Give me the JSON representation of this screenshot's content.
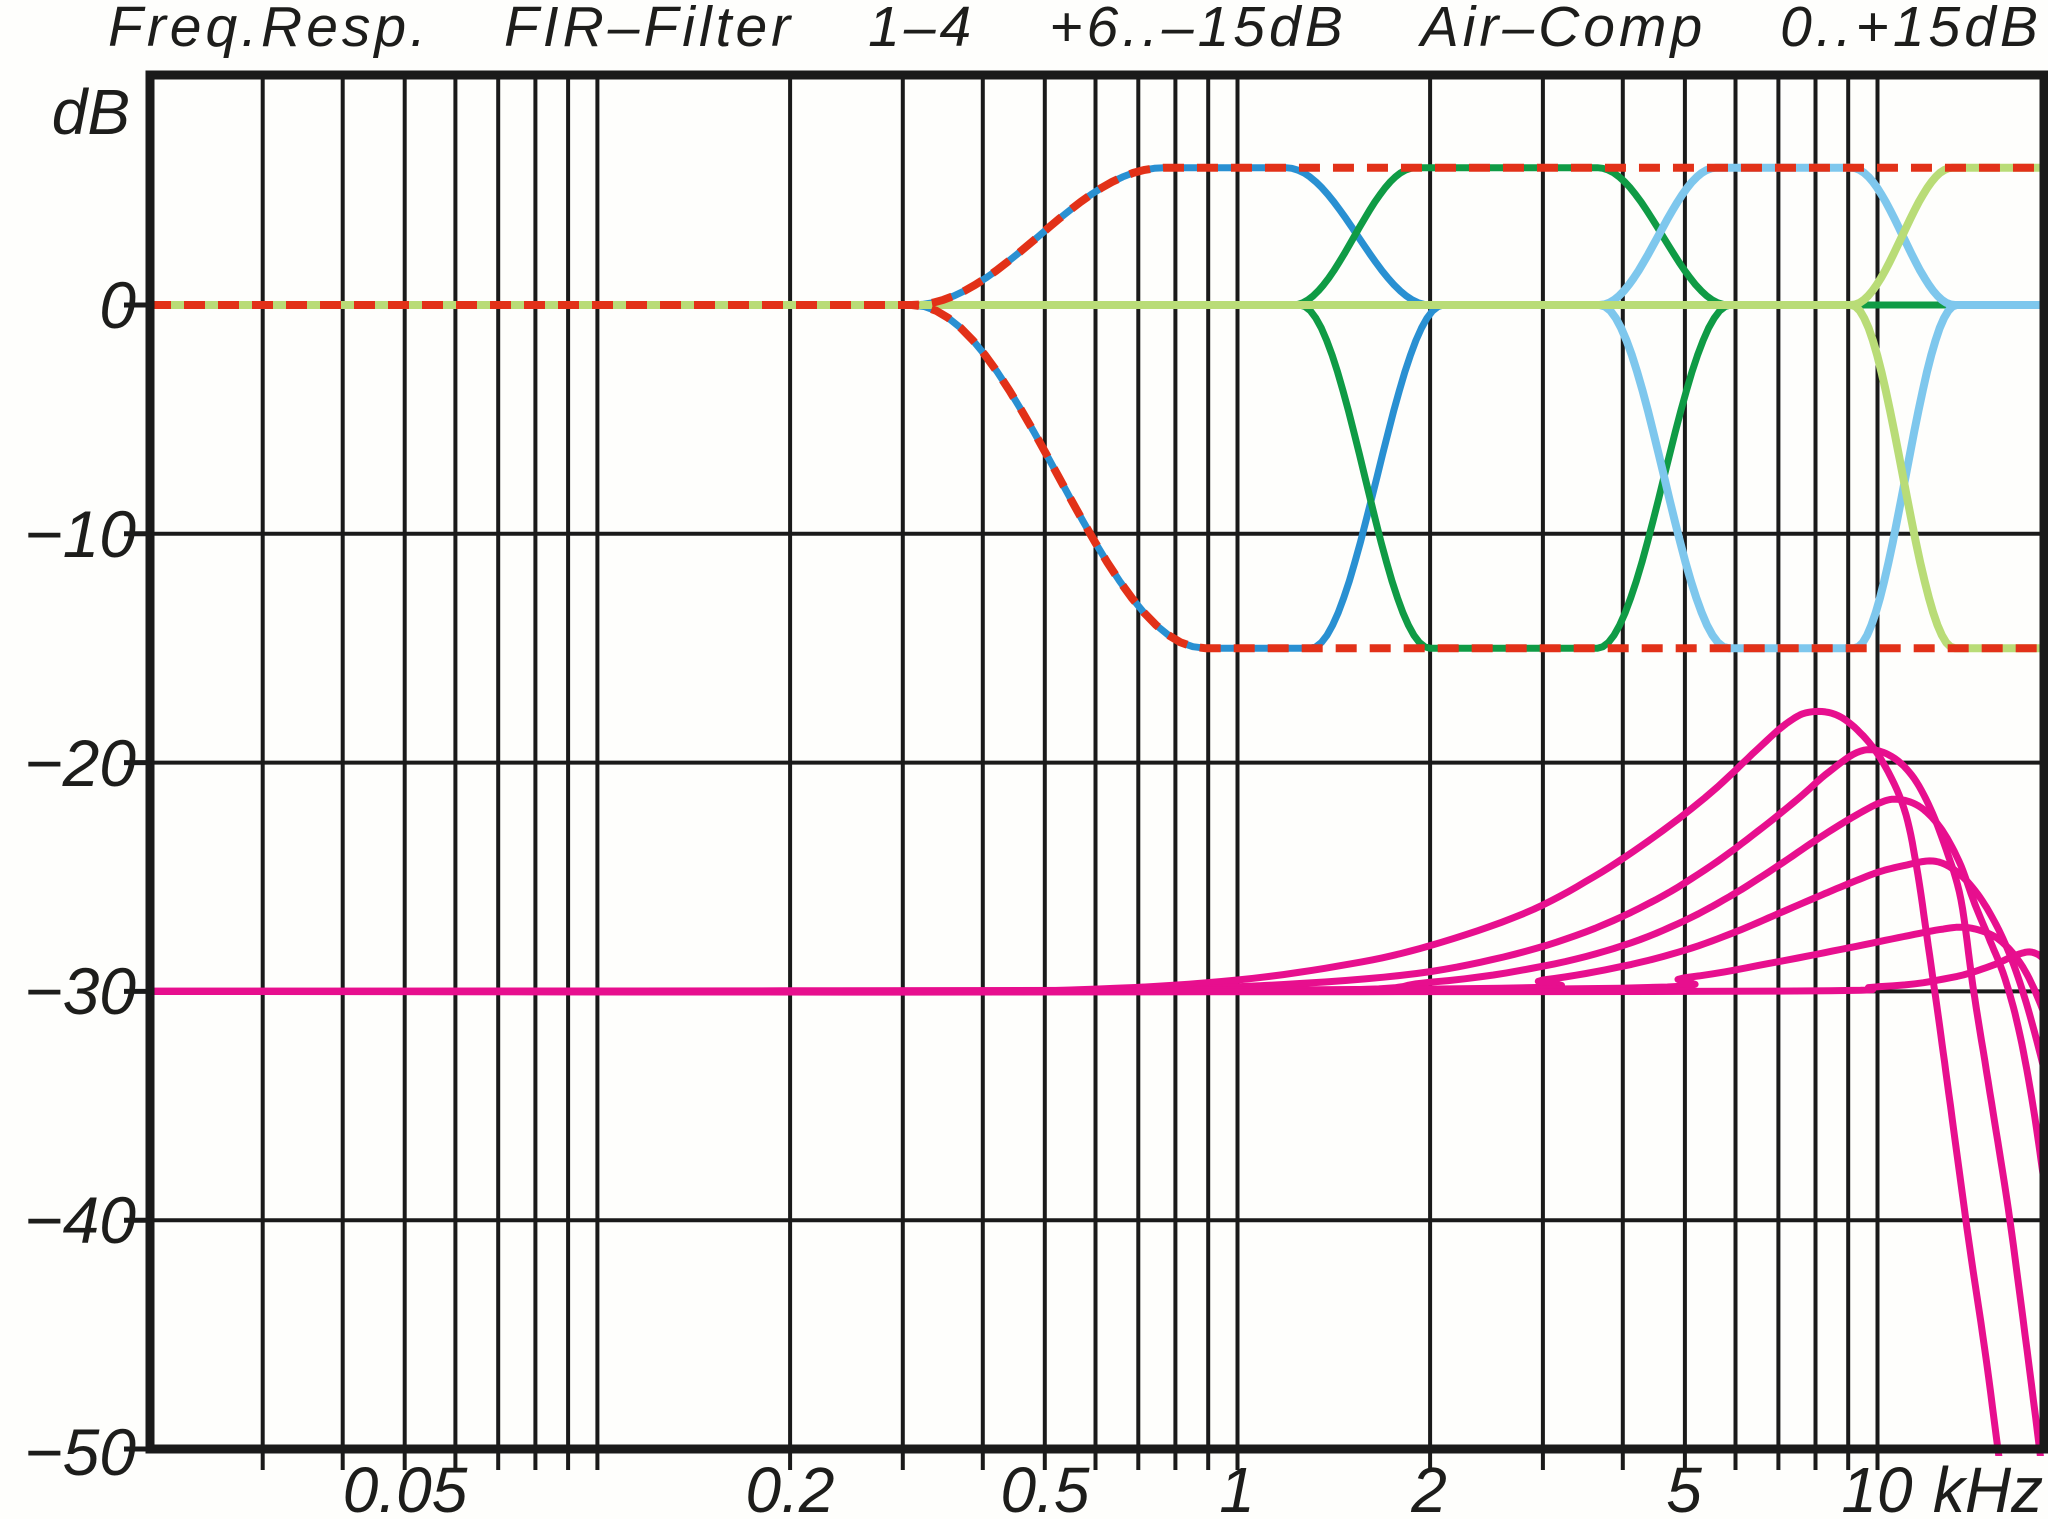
{
  "title": "Freq.Resp. FIR–Filter 1–4 +6..–15dB Air–Comp 0..+15dB",
  "title_words": [
    "Freq.Resp.",
    "FIR–Filter",
    "1–4",
    "+6..–15dB",
    "Air–Comp",
    "0..+15dB"
  ],
  "axes": {
    "y_unit_label": "dB",
    "y_tick_labels": [
      "0",
      "−10",
      "−20",
      "−30",
      "−40",
      "−50"
    ],
    "x_tick_labels": [
      "0.05",
      "0.2",
      "0.5",
      "1",
      "2",
      "5",
      "10"
    ],
    "x_unit_label": "kHz"
  },
  "colors": {
    "ink": "#1d1d1b",
    "grid": "#1a1a1a",
    "envelope_red": "#e23118",
    "filter1_blue": "#2990d2",
    "filter2_green": "#0f9b45",
    "filter3_lightblue": "#7ec7ed",
    "filter4_lightgreen": "#b9dc77",
    "aircomp_magenta": "#e70f8e"
  },
  "chart_data": {
    "type": "line",
    "x_scale": "log",
    "x_axis_label": "kHz",
    "y_axis_label": "dB",
    "x_range_khz": [
      0.02,
      18.2
    ],
    "y_range_db": [
      -50,
      10
    ],
    "y_gridlines_db": [
      0,
      -10,
      -20,
      -30,
      -40
    ],
    "x_gridlines_khz": [
      0.03,
      0.04,
      0.05,
      0.06,
      0.07,
      0.08,
      0.09,
      0.1,
      0.2,
      0.3,
      0.4,
      0.5,
      0.6,
      0.7,
      0.8,
      0.9,
      1,
      2,
      3,
      4,
      5,
      6,
      7,
      8,
      9,
      10
    ],
    "x_tick_khz": [
      0.05,
      0.2,
      0.5,
      1,
      2,
      5,
      10
    ],
    "y_tick_db": [
      0,
      -10,
      -20,
      -30,
      -40,
      -50
    ],
    "legend": "none",
    "grid": "on",
    "description": "FIR shelving filters 1-4 shown at max (+6 dB) and min (-15 dB) settings with red dashed overall envelope; magenta Air-Comp boost curves 0..+15 dB offset to -30 dB",
    "series": [
      {
        "name": "fir-filter-1-max",
        "color_key": "filter1_blue",
        "width": 7,
        "segments": [
          {
            "type": "flat",
            "f0": 0.02,
            "f1": 0.31,
            "db": 0
          },
          {
            "type": "s",
            "f0": 0.31,
            "f1": 0.77,
            "db0": 0,
            "db1": 6
          },
          {
            "type": "flat",
            "f0": 0.77,
            "f1": 1.19,
            "db": 6
          },
          {
            "type": "s",
            "f0": 1.19,
            "f1": 2.0,
            "db0": 6,
            "db1": 0
          },
          {
            "type": "flat",
            "f0": 2.0,
            "f1": 18.2,
            "db": 0
          }
        ]
      },
      {
        "name": "fir-filter-1-min",
        "color_key": "filter1_blue",
        "width": 7,
        "segments": [
          {
            "type": "flat",
            "f0": 0.02,
            "f1": 0.31,
            "db": 0
          },
          {
            "type": "s",
            "f0": 0.31,
            "f1": 0.89,
            "db0": 0,
            "db1": -15
          },
          {
            "type": "flat",
            "f0": 0.89,
            "f1": 1.3,
            "db": -15
          },
          {
            "type": "s",
            "f0": 1.3,
            "f1": 2.1,
            "db0": -15,
            "db1": 0
          },
          {
            "type": "flat",
            "f0": 2.1,
            "f1": 18.2,
            "db": 0
          }
        ]
      },
      {
        "name": "fir-filter-2-max",
        "color_key": "filter2_green",
        "width": 7,
        "segments": [
          {
            "type": "flat",
            "f0": 0.02,
            "f1": 1.22,
            "db": 0
          },
          {
            "type": "s",
            "f0": 1.22,
            "f1": 1.9,
            "db0": 0,
            "db1": 6
          },
          {
            "type": "flat",
            "f0": 1.9,
            "f1": 3.65,
            "db": 6
          },
          {
            "type": "s",
            "f0": 3.65,
            "f1": 5.85,
            "db0": 6,
            "db1": 0
          },
          {
            "type": "flat",
            "f0": 5.85,
            "f1": 18.2,
            "db": 0
          }
        ]
      },
      {
        "name": "fir-filter-2-min",
        "color_key": "filter2_green",
        "width": 7,
        "segments": [
          {
            "type": "flat",
            "f0": 0.02,
            "f1": 1.25,
            "db": 0
          },
          {
            "type": "s",
            "f0": 1.25,
            "f1": 2.0,
            "db0": 0,
            "db1": -15
          },
          {
            "type": "flat",
            "f0": 2.0,
            "f1": 3.65,
            "db": -15
          },
          {
            "type": "s",
            "f0": 3.65,
            "f1": 5.9,
            "db0": -15,
            "db1": 0
          },
          {
            "type": "flat",
            "f0": 5.9,
            "f1": 18.2,
            "db": 0
          }
        ]
      },
      {
        "name": "fir-filter-3-max",
        "color_key": "filter3_lightblue",
        "width": 8,
        "segments": [
          {
            "type": "flat",
            "f0": 0.02,
            "f1": 3.68,
            "db": 0
          },
          {
            "type": "s",
            "f0": 3.68,
            "f1": 5.6,
            "db0": 0,
            "db1": 6
          },
          {
            "type": "flat",
            "f0": 5.6,
            "f1": 9.1,
            "db": 6
          },
          {
            "type": "s",
            "f0": 9.1,
            "f1": 13.2,
            "db0": 6,
            "db1": 0
          },
          {
            "type": "flat",
            "f0": 13.2,
            "f1": 18.2,
            "db": 0
          }
        ]
      },
      {
        "name": "fir-filter-3-min",
        "color_key": "filter3_lightblue",
        "width": 8,
        "segments": [
          {
            "type": "flat",
            "f0": 0.02,
            "f1": 3.68,
            "db": 0
          },
          {
            "type": "s",
            "f0": 3.68,
            "f1": 5.85,
            "db0": 0,
            "db1": -15
          },
          {
            "type": "flat",
            "f0": 5.85,
            "f1": 9.2,
            "db": -15
          },
          {
            "type": "s",
            "f0": 9.2,
            "f1": 13.3,
            "db0": -15,
            "db1": 0
          },
          {
            "type": "flat",
            "f0": 13.3,
            "f1": 18.2,
            "db": 0
          }
        ]
      },
      {
        "name": "fir-filter-4-max",
        "color_key": "filter4_lightgreen",
        "width": 8,
        "segments": [
          {
            "type": "flat",
            "f0": 0.02,
            "f1": 9.1,
            "db": 0
          },
          {
            "type": "s",
            "f0": 9.1,
            "f1": 13.1,
            "db0": 0,
            "db1": 6
          },
          {
            "type": "flat",
            "f0": 13.1,
            "f1": 18.2,
            "db": 6
          }
        ]
      },
      {
        "name": "fir-filter-4-min",
        "color_key": "filter4_lightgreen",
        "width": 8,
        "segments": [
          {
            "type": "flat",
            "f0": 0.02,
            "f1": 9.1,
            "db": 0
          },
          {
            "type": "s",
            "f0": 9.1,
            "f1": 13.2,
            "db0": 0,
            "db1": -15
          },
          {
            "type": "flat",
            "f0": 13.2,
            "f1": 18.2,
            "db": -15
          }
        ]
      },
      {
        "name": "air-comp-plus15",
        "color_key": "aircomp_magenta",
        "width": 7,
        "points": [
          [
            0.02,
            -30
          ],
          [
            0.3,
            -30
          ],
          [
            0.6,
            -29.9
          ],
          [
            1,
            -29.5
          ],
          [
            1.5,
            -28.8
          ],
          [
            2,
            -28
          ],
          [
            2.8,
            -26.6
          ],
          [
            3.6,
            -25
          ],
          [
            4.5,
            -23.2
          ],
          [
            5.5,
            -21.3
          ],
          [
            6.5,
            -19.4
          ],
          [
            7.2,
            -18.3
          ],
          [
            7.8,
            -17.8
          ],
          [
            8.6,
            -17.9
          ],
          [
            9.4,
            -18.7
          ],
          [
            10.2,
            -20
          ],
          [
            11,
            -22
          ],
          [
            11.5,
            -24.5
          ],
          [
            12,
            -28
          ],
          [
            12.5,
            -31.5
          ],
          [
            13,
            -35
          ],
          [
            13.9,
            -41
          ],
          [
            14.7,
            -45.6
          ],
          [
            15.5,
            -50.5
          ],
          [
            15.9,
            -53
          ]
        ]
      },
      {
        "name": "air-comp-plus12",
        "color_key": "aircomp_magenta",
        "width": 7,
        "points": [
          [
            0.02,
            -30
          ],
          [
            0.5,
            -30
          ],
          [
            1,
            -29.8
          ],
          [
            1.8,
            -29.3
          ],
          [
            2.6,
            -28.5
          ],
          [
            3.5,
            -27.4
          ],
          [
            4.5,
            -26
          ],
          [
            5.5,
            -24.5
          ],
          [
            6.5,
            -23
          ],
          [
            7.5,
            -21.6
          ],
          [
            8.4,
            -20.4
          ],
          [
            9.4,
            -19.5
          ],
          [
            10.3,
            -19.6
          ],
          [
            11.2,
            -20.4
          ],
          [
            12,
            -21.8
          ],
          [
            12.8,
            -23.8
          ],
          [
            13.5,
            -26
          ],
          [
            14.1,
            -29.8
          ],
          [
            14.8,
            -33.5
          ],
          [
            15.5,
            -37
          ],
          [
            16.1,
            -40
          ],
          [
            17,
            -45
          ],
          [
            18,
            -50.5
          ],
          [
            18.4,
            -53
          ]
        ]
      },
      {
        "name": "air-comp-plus9",
        "color_key": "aircomp_magenta",
        "width": 7,
        "points": [
          [
            0.02,
            -30
          ],
          [
            1,
            -30
          ],
          [
            2,
            -29.6
          ],
          [
            3,
            -28.9
          ],
          [
            4,
            -28
          ],
          [
            5,
            -26.9
          ],
          [
            6,
            -25.7
          ],
          [
            7,
            -24.5
          ],
          [
            8,
            -23.4
          ],
          [
            9,
            -22.5
          ],
          [
            10,
            -21.8
          ],
          [
            10.7,
            -21.6
          ],
          [
            11.6,
            -21.9
          ],
          [
            12.5,
            -22.8
          ],
          [
            13.4,
            -24.3
          ],
          [
            14.2,
            -26.2
          ],
          [
            15,
            -27.8
          ],
          [
            15.8,
            -29.4
          ],
          [
            16.6,
            -31.6
          ],
          [
            17.4,
            -34.6
          ],
          [
            18.2,
            -38.3
          ],
          [
            18.8,
            -41.5
          ]
        ]
      },
      {
        "name": "air-comp-plus6",
        "color_key": "aircomp_magenta",
        "width": 7,
        "points": [
          [
            0.02,
            -30
          ],
          [
            2,
            -29.9
          ],
          [
            3,
            -29.5
          ],
          [
            4,
            -28.9
          ],
          [
            5,
            -28.2
          ],
          [
            6,
            -27.4
          ],
          [
            7,
            -26.6
          ],
          [
            8,
            -25.9
          ],
          [
            9,
            -25.3
          ],
          [
            10,
            -24.8
          ],
          [
            11,
            -24.5
          ],
          [
            12.2,
            -24.3
          ],
          [
            13.2,
            -24.7
          ],
          [
            14.2,
            -25.6
          ],
          [
            15.2,
            -26.9
          ],
          [
            16.2,
            -28.6
          ],
          [
            17.2,
            -30.8
          ],
          [
            18.2,
            -33.4
          ],
          [
            18.8,
            -35.2
          ]
        ]
      },
      {
        "name": "air-comp-plus3",
        "color_key": "aircomp_magenta",
        "width": 7,
        "points": [
          [
            0.02,
            -30
          ],
          [
            3,
            -29.9
          ],
          [
            5,
            -29.4
          ],
          [
            7,
            -28.7
          ],
          [
            9,
            -28.1
          ],
          [
            11,
            -27.6
          ],
          [
            12.5,
            -27.3
          ],
          [
            13.7,
            -27.2
          ],
          [
            15,
            -27.5
          ],
          [
            16,
            -28.1
          ],
          [
            17,
            -29.1
          ],
          [
            18,
            -30.6
          ],
          [
            18.8,
            -32.2
          ]
        ]
      },
      {
        "name": "air-comp-0",
        "color_key": "aircomp_magenta",
        "width": 7,
        "points": [
          [
            0.02,
            -30
          ],
          [
            5,
            -30
          ],
          [
            10,
            -29.8
          ],
          [
            13,
            -29.4
          ],
          [
            15,
            -28.9
          ],
          [
            16.5,
            -28.4
          ],
          [
            17.5,
            -28.3
          ],
          [
            18.3,
            -28.8
          ],
          [
            18.8,
            -30.5
          ]
        ]
      },
      {
        "name": "envelope-max-plus6",
        "color_key": "envelope_red",
        "width": 8,
        "dash": "21 13",
        "segments": [
          {
            "type": "flat",
            "f0": 0.02,
            "f1": 0.31,
            "db": 0
          },
          {
            "type": "s",
            "f0": 0.31,
            "f1": 0.77,
            "db0": 0,
            "db1": 6
          },
          {
            "type": "flat",
            "f0": 0.77,
            "f1": 18.2,
            "db": 6
          }
        ]
      },
      {
        "name": "envelope-min-minus15",
        "color_key": "envelope_red",
        "width": 8,
        "dash": "21 13",
        "segments": [
          {
            "type": "flat",
            "f0": 0.02,
            "f1": 0.31,
            "db": 0
          },
          {
            "type": "s",
            "f0": 0.31,
            "f1": 0.89,
            "db0": 0,
            "db1": -15
          },
          {
            "type": "flat",
            "f0": 0.89,
            "f1": 18.2,
            "db": -15
          }
        ]
      }
    ]
  }
}
